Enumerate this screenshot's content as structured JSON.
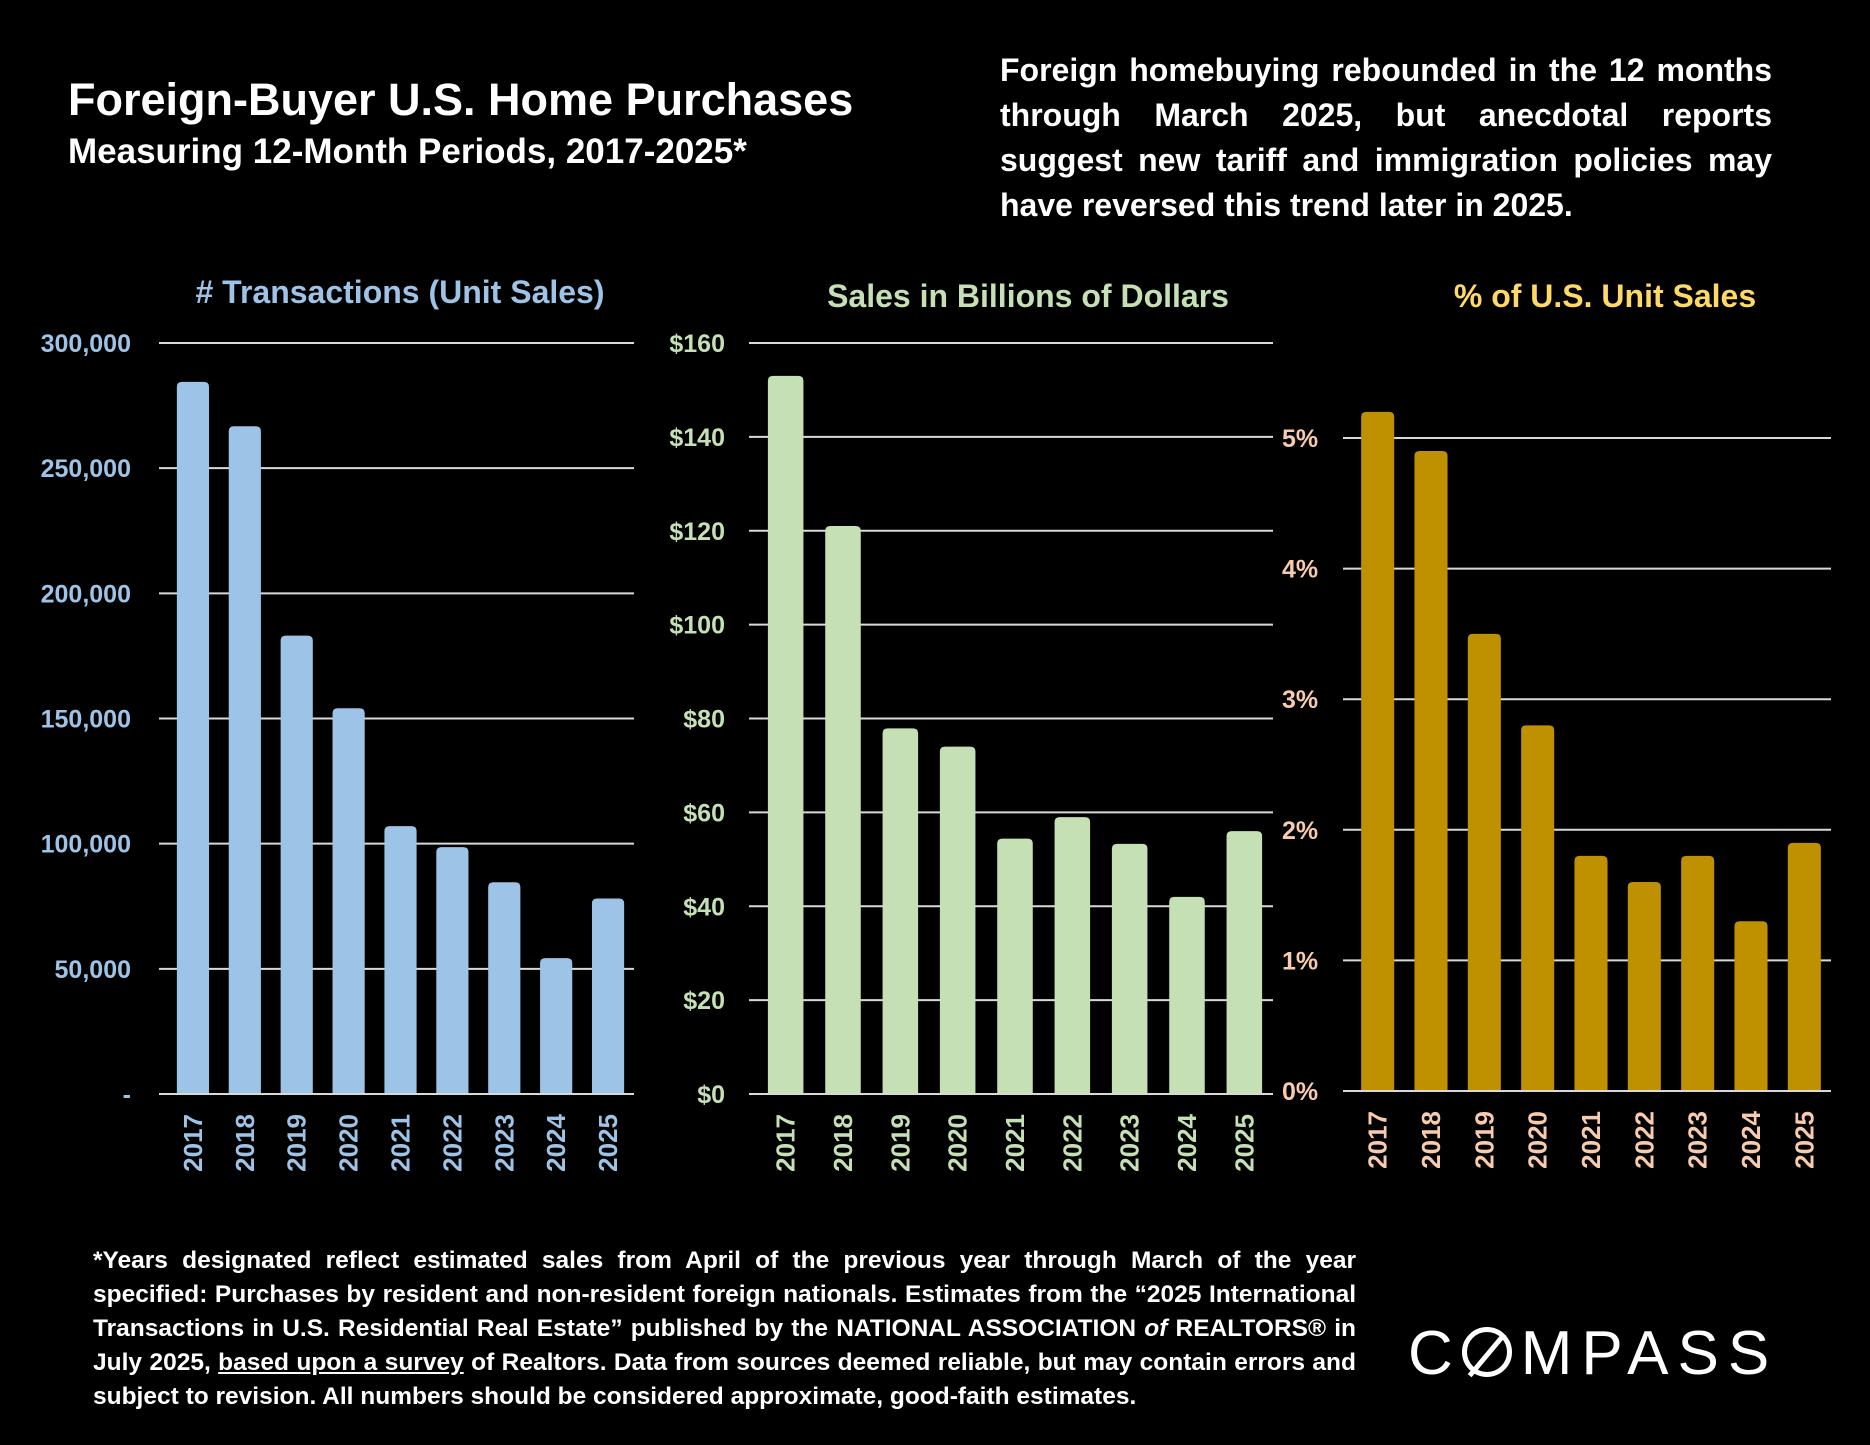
{
  "header": {
    "title": "Foreign-Buyer U.S. Home Purchases",
    "subtitle": "Measuring 12-Month Periods, 2017-2025*",
    "summary": "Foreign homebuying rebounded in the 12 months through March 2025, but anecdotal reports suggest new tariff and immigration policies may have reversed this trend later in 2025."
  },
  "footnote": {
    "before": "*Years designated reflect estimated sales from April of the previous year through March of the year specified: Purchases by resident and non-resident foreign nationals. Estimates from the “2025 International Transactions in U.S. Residential Real Estate” published by the NATIONAL ASSOCIATION ",
    "of": "of",
    "middle": " REALTORS® in July 2025, ",
    "link": "based upon a survey",
    "after": " of Realtors. Data from sources deemed reliable, but may contain errors and subject to revision.  All numbers should be considered approximate, good-faith estimates."
  },
  "logo": "COMPASS",
  "chart_data": [
    {
      "type": "bar",
      "title": "# Transactions (Unit Sales)",
      "categories": [
        "2017",
        "2018",
        "2019",
        "2020",
        "2021",
        "2022",
        "2023",
        "2024",
        "2025"
      ],
      "values": [
        284455,
        266754,
        183100,
        154100,
        107000,
        98600,
        84600,
        54300,
        78100
      ],
      "ylim": [
        0,
        300000
      ],
      "yticks": [
        0,
        50000,
        100000,
        150000,
        200000,
        250000,
        300000
      ],
      "ytick_labels": [
        "-",
        "50,000",
        "100,000",
        "150,000",
        "200,000",
        "250,000",
        "300,000"
      ],
      "grid": true,
      "bar_color": "#9dc3e6",
      "title_color": "#9dc3e6",
      "tick_color": "#9dc3e6"
    },
    {
      "type": "bar",
      "title": "Sales in Billions of Dollars",
      "categories": [
        "2017",
        "2018",
        "2019",
        "2020",
        "2021",
        "2022",
        "2023",
        "2024",
        "2025"
      ],
      "values": [
        153.0,
        121.0,
        77.9,
        74.0,
        54.4,
        59.0,
        53.3,
        42.0,
        56.0
      ],
      "ylim": [
        0,
        160
      ],
      "yticks": [
        0,
        20,
        40,
        60,
        80,
        100,
        120,
        140,
        160
      ],
      "ytick_labels": [
        "$0",
        "$20",
        "$40",
        "$60",
        "$80",
        "$100",
        "$120",
        "$140",
        "$160"
      ],
      "grid": true,
      "bar_color": "#c5e0b4",
      "title_color": "#c5e0b4",
      "tick_color": "#c5e0b4"
    },
    {
      "type": "bar",
      "title": "% of U.S. Unit Sales",
      "categories": [
        "2017",
        "2018",
        "2019",
        "2020",
        "2021",
        "2022",
        "2023",
        "2024",
        "2025"
      ],
      "values": [
        5.2,
        4.9,
        3.5,
        2.8,
        1.8,
        1.6,
        1.8,
        1.3,
        1.9
      ],
      "ylim": [
        0,
        5.5
      ],
      "yticks": [
        0,
        1,
        2,
        3,
        4,
        5
      ],
      "ytick_labels": [
        "0%",
        "1%",
        "2%",
        "3%",
        "4%",
        "5%"
      ],
      "grid": true,
      "bar_color": "#bf9000",
      "title_color": "#ffd966",
      "tick_color": "#f8cbad"
    }
  ]
}
